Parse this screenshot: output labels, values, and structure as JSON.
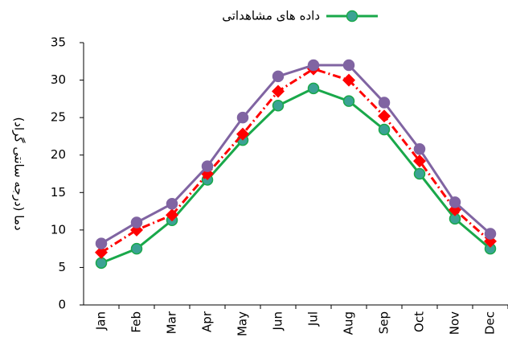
{
  "chart_data": {
    "type": "line",
    "ylabel": "دما (درجه سانتی گراد)",
    "categories": [
      "Jan",
      "Feb",
      "Mar",
      "Apr",
      "May",
      "Jun",
      "Jul",
      "Aug",
      "Sep",
      "Oct",
      "Nov",
      "Dec"
    ],
    "series": [
      {
        "name": "داده های مشاهداتی",
        "color": "#19a84a",
        "marker": "circle",
        "marker_color": "#3ba294",
        "values": [
          5.6,
          7.5,
          11.3,
          16.7,
          22,
          26.6,
          28.9,
          27.2,
          23.4,
          17.5,
          11.5,
          7.5
        ]
      },
      {
        "color": "#ff0000",
        "marker": "diamond",
        "dash": "dashdot",
        "values": [
          7,
          10,
          12,
          17.5,
          22.8,
          28.5,
          31.5,
          30,
          25.2,
          19.2,
          12.7,
          8.5
        ]
      },
      {
        "color": "#8064a2",
        "marker": "circle",
        "values": [
          8.2,
          11,
          13.5,
          18.5,
          25,
          30.5,
          32,
          32,
          27,
          20.8,
          13.7,
          9.5
        ]
      }
    ],
    "ylim": [
      0,
      35
    ],
    "yticks": [
      0,
      5,
      10,
      15,
      20,
      25,
      30,
      35
    ],
    "grid": false,
    "legend": "top"
  }
}
